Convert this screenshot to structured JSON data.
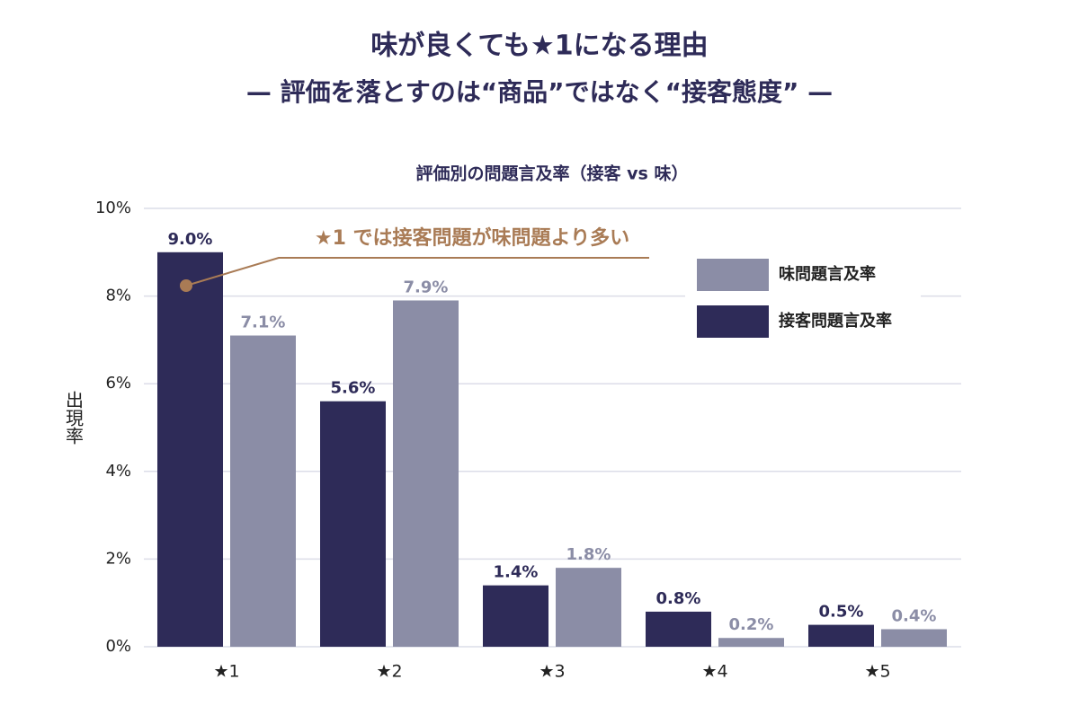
{
  "chart_data": {
    "type": "bar",
    "title": "味が良くても★1になる理由",
    "subtitle": "— 評価を落とすのは“商品”ではなく“接客態度” —",
    "chart_title": "評価別の問題言及率（接客 vs 味）",
    "y_label": "出現率",
    "annotation": "★1 では接客問題が味問題より多い",
    "categories": [
      "★1",
      "★2",
      "★3",
      "★4",
      "★5"
    ],
    "series": [
      {
        "name": "接客問題言及率",
        "color": "#2e2b58",
        "values": [
          9.0,
          5.6,
          1.4,
          0.8,
          0.5
        ],
        "value_labels": [
          "9.0%",
          "5.6%",
          "1.4%",
          "0.8%",
          "0.5%"
        ]
      },
      {
        "name": "味問題言及率",
        "color": "#8b8da6",
        "values": [
          7.1,
          7.9,
          1.8,
          0.2,
          0.4
        ],
        "value_labels": [
          "7.1%",
          "7.9%",
          "1.8%",
          "0.2%",
          "0.4%"
        ]
      }
    ],
    "ylim": [
      0,
      10
    ],
    "yticks": [
      {
        "value": 0,
        "label": "0%"
      },
      {
        "value": 2,
        "label": "2%"
      },
      {
        "value": 4,
        "label": "4%"
      },
      {
        "value": 6,
        "label": "6%"
      },
      {
        "value": 8,
        "label": "8%"
      },
      {
        "value": 10,
        "label": "10%"
      }
    ],
    "grid": true,
    "legend": "upper right"
  }
}
